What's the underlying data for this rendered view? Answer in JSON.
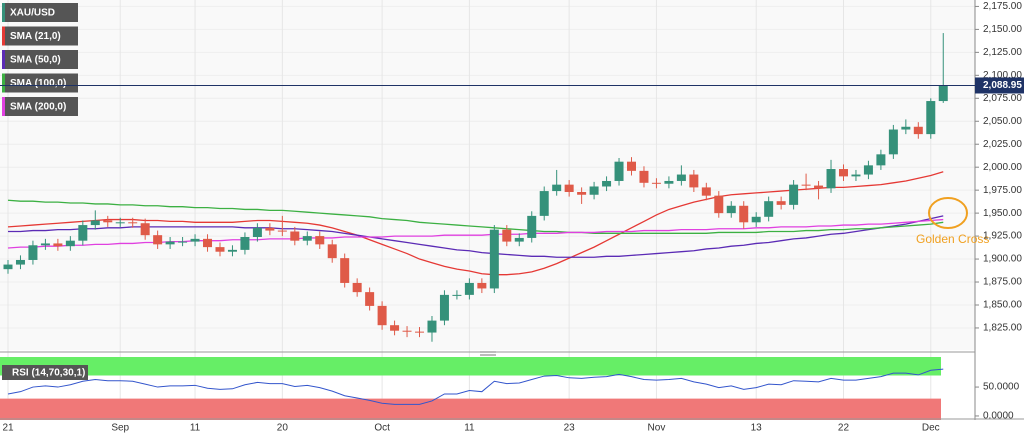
{
  "chart_data": [
    {
      "type": "candlestick",
      "name": "XAU/USD",
      "categories": [
        "21",
        null,
        null,
        null,
        null,
        null,
        null,
        null,
        null,
        "Sep",
        null,
        null,
        null,
        null,
        null,
        "11",
        null,
        null,
        null,
        null,
        null,
        null,
        "20",
        null,
        null,
        null,
        null,
        null,
        null,
        null,
        "Oct",
        null,
        null,
        null,
        null,
        null,
        null,
        "11",
        null,
        null,
        null,
        null,
        null,
        null,
        null,
        "23",
        null,
        null,
        null,
        null,
        null,
        null,
        "Nov",
        null,
        null,
        null,
        null,
        null,
        null,
        null,
        "13",
        null,
        null,
        null,
        null,
        null,
        null,
        "22",
        null,
        null,
        null,
        null,
        null,
        null,
        "Dec",
        null
      ],
      "open": [
        1889,
        1894,
        1899,
        1915,
        1917,
        1914,
        1920,
        1937,
        1942,
        1940,
        1940,
        1939,
        1926,
        1916,
        1919,
        1919,
        1922,
        1913,
        1908,
        1910,
        1924,
        1934,
        1931,
        1930,
        1920,
        1925,
        1916,
        1901,
        1874,
        1864,
        1849,
        1828,
        1822,
        1821,
        1820,
        1833,
        1861,
        1861,
        1874,
        1868,
        1932,
        1919,
        1923,
        1947,
        1974,
        1981,
        1973,
        1970,
        1979,
        1985,
        2006,
        1996,
        1983,
        1982,
        1985,
        1992,
        1978,
        1969,
        1950,
        1958,
        1940,
        1946,
        1963,
        1959,
        1981,
        1980,
        1977,
        1998,
        1990,
        1992,
        2002,
        2014,
        2041,
        2044,
        2036,
        2072
      ],
      "high": [
        1899,
        1904,
        1920,
        1922,
        1922,
        1925,
        1942,
        1953,
        1947,
        1945,
        1945,
        1944,
        1931,
        1924,
        1924,
        1927,
        1927,
        1918,
        1915,
        1929,
        1939,
        1939,
        1947,
        1935,
        1930,
        1930,
        1921,
        1906,
        1879,
        1869,
        1854,
        1833,
        1827,
        1826,
        1838,
        1866,
        1866,
        1879,
        1879,
        1937,
        1937,
        1928,
        1952,
        1979,
        1997,
        1986,
        1978,
        1984,
        1990,
        2010,
        2011,
        2001,
        1988,
        1990,
        2002,
        1997,
        1983,
        1974,
        1963,
        1963,
        1951,
        1968,
        1968,
        1986,
        1993,
        1985,
        2008,
        2003,
        1997,
        2007,
        2019,
        2046,
        2052,
        2049,
        2075,
        2146
      ],
      "low": [
        1884,
        1889,
        1894,
        1910,
        1909,
        1909,
        1915,
        1932,
        1935,
        1935,
        1934,
        1921,
        1911,
        1911,
        1914,
        1914,
        1908,
        1903,
        1903,
        1905,
        1919,
        1926,
        1925,
        1915,
        1915,
        1911,
        1896,
        1869,
        1859,
        1844,
        1823,
        1817,
        1815,
        1815,
        1810,
        1828,
        1856,
        1856,
        1863,
        1863,
        1914,
        1914,
        1918,
        1942,
        1969,
        1968,
        1960,
        1965,
        1974,
        1980,
        1991,
        1978,
        1977,
        1977,
        1980,
        1973,
        1964,
        1945,
        1945,
        1933,
        1935,
        1941,
        1954,
        1954,
        1975,
        1965,
        1972,
        1985,
        1985,
        1987,
        1997,
        2009,
        2036,
        2031,
        2031,
        2070
      ],
      "close": [
        1894,
        1899,
        1915,
        1917,
        1914,
        1920,
        1937,
        1942,
        1940,
        1940,
        1939,
        1926,
        1916,
        1919,
        1919,
        1922,
        1913,
        1908,
        1910,
        1924,
        1934,
        1931,
        1930,
        1920,
        1925,
        1916,
        1901,
        1874,
        1864,
        1849,
        1828,
        1822,
        1821,
        1820,
        1833,
        1861,
        1861,
        1874,
        1868,
        1932,
        1919,
        1923,
        1947,
        1974,
        1981,
        1973,
        1970,
        1979,
        1985,
        2006,
        1996,
        1983,
        1982,
        1985,
        1992,
        1978,
        1969,
        1950,
        1958,
        1940,
        1946,
        1963,
        1959,
        1981,
        1980,
        1977,
        1998,
        1990,
        1992,
        2002,
        2014,
        2041,
        2044,
        2036,
        2072,
        2089
      ],
      "up_color": "#35917a",
      "down_color": "#df5a48",
      "series": [
        {
          "name": "SMA (21,0)",
          "color": "#e53935",
          "values": [
            1935,
            1936,
            1937,
            1938,
            1939,
            1940,
            1941,
            1942,
            1943,
            1943,
            1943,
            1942,
            1942,
            1941,
            1941,
            1940,
            1940,
            1940,
            1940,
            1941,
            1942,
            1942,
            1941,
            1940,
            1939,
            1937,
            1934,
            1930,
            1926,
            1921,
            1916,
            1911,
            1906,
            1900,
            1896,
            1892,
            1889,
            1887,
            1884,
            1883,
            1883,
            1884,
            1886,
            1890,
            1895,
            1901,
            1907,
            1913,
            1920,
            1927,
            1934,
            1941,
            1948,
            1954,
            1958,
            1962,
            1965,
            1968,
            1970,
            1971,
            1972,
            1973,
            1974,
            1975,
            1976,
            1977,
            1978,
            1978,
            1979,
            1980,
            1981,
            1983,
            1985,
            1988,
            1991,
            1995
          ]
        },
        {
          "name": "SMA (50,0)",
          "color": "#5b2bb5",
          "values": [
            1930,
            1930,
            1931,
            1931,
            1932,
            1932,
            1933,
            1933,
            1934,
            1934,
            1935,
            1935,
            1935,
            1935,
            1935,
            1935,
            1935,
            1935,
            1935,
            1934,
            1934,
            1934,
            1933,
            1933,
            1932,
            1931,
            1930,
            1928,
            1926,
            1924,
            1922,
            1920,
            1918,
            1916,
            1914,
            1912,
            1910,
            1909,
            1907,
            1906,
            1905,
            1904,
            1903,
            1903,
            1902,
            1902,
            1902,
            1902,
            1903,
            1903,
            1904,
            1905,
            1906,
            1907,
            1908,
            1909,
            1911,
            1912,
            1914,
            1915,
            1917,
            1918,
            1920,
            1922,
            1923,
            1925,
            1927,
            1928,
            1930,
            1932,
            1934,
            1936,
            1938,
            1941,
            1944,
            1947
          ]
        },
        {
          "name": "SMA (100,0)",
          "color": "#3cb043",
          "values": [
            1964,
            1963,
            1963,
            1962,
            1962,
            1961,
            1961,
            1960,
            1960,
            1959,
            1959,
            1958,
            1958,
            1957,
            1957,
            1956,
            1956,
            1955,
            1955,
            1954,
            1954,
            1953,
            1953,
            1952,
            1951,
            1950,
            1949,
            1948,
            1947,
            1946,
            1944,
            1943,
            1942,
            1940,
            1939,
            1938,
            1937,
            1936,
            1935,
            1934,
            1933,
            1932,
            1931,
            1930,
            1930,
            1929,
            1929,
            1928,
            1928,
            1928,
            1928,
            1928,
            1928,
            1928,
            1928,
            1928,
            1928,
            1929,
            1929,
            1929,
            1929,
            1930,
            1930,
            1930,
            1931,
            1931,
            1932,
            1932,
            1933,
            1933,
            1934,
            1935,
            1936,
            1937,
            1938,
            1940
          ]
        },
        {
          "name": "SMA (200,0)",
          "color": "#e040e0",
          "values": [
            1912,
            1913,
            1913,
            1914,
            1914,
            1915,
            1915,
            1916,
            1916,
            1917,
            1917,
            1918,
            1918,
            1919,
            1919,
            1920,
            1920,
            1920,
            1921,
            1921,
            1921,
            1922,
            1922,
            1922,
            1923,
            1923,
            1923,
            1924,
            1924,
            1924,
            1924,
            1925,
            1925,
            1925,
            1925,
            1926,
            1926,
            1926,
            1926,
            1927,
            1927,
            1927,
            1928,
            1928,
            1928,
            1929,
            1929,
            1929,
            1930,
            1930,
            1930,
            1931,
            1931,
            1931,
            1932,
            1932,
            1932,
            1933,
            1933,
            1933,
            1934,
            1934,
            1935,
            1935,
            1935,
            1936,
            1936,
            1937,
            1937,
            1938,
            1938,
            1939,
            1940,
            1941,
            1942,
            1943
          ]
        }
      ],
      "ylim": [
        1801,
        2182
      ],
      "yticks": [
        {
          "value": 2175,
          "label": "2,175.00"
        },
        {
          "value": 2150,
          "label": "2,150.00"
        },
        {
          "value": 2125,
          "label": "2,125.00"
        },
        {
          "value": 2100,
          "label": "2,100.00"
        },
        {
          "value": 2075,
          "label": "2,075.00"
        },
        {
          "value": 2050,
          "label": "2,050.00"
        },
        {
          "value": 2025,
          "label": "2,025.00"
        },
        {
          "value": 2000,
          "label": "2,000.00"
        },
        {
          "value": 1975,
          "label": "1,975.00"
        },
        {
          "value": 1950,
          "label": "1,950.00"
        },
        {
          "value": 1925,
          "label": "1,925.00"
        },
        {
          "value": 1900,
          "label": "1,900.00"
        },
        {
          "value": 1875,
          "label": "1,875.00"
        },
        {
          "value": 1850,
          "label": "1,850.00"
        },
        {
          "value": 1825,
          "label": "1,825.00"
        }
      ],
      "last_price": {
        "value": 2088.95,
        "label": "2,088.95"
      },
      "annotation": "Golden Cross"
    },
    {
      "type": "line",
      "title": "RSI (14,70,30,1)",
      "color": "#3355cc",
      "values": [
        38,
        42,
        50,
        52,
        50,
        54,
        60,
        63,
        61,
        61,
        60,
        55,
        50,
        52,
        52,
        53,
        48,
        46,
        47,
        54,
        58,
        56,
        56,
        51,
        53,
        49,
        43,
        35,
        31,
        27,
        22,
        20,
        20,
        20,
        26,
        38,
        38,
        44,
        42,
        60,
        56,
        57,
        63,
        69,
        70,
        66,
        65,
        67,
        68,
        72,
        68,
        63,
        62,
        63,
        65,
        59,
        55,
        49,
        52,
        46,
        49,
        55,
        54,
        61,
        60,
        59,
        65,
        62,
        62,
        65,
        68,
        74,
        74,
        71,
        79,
        81
      ],
      "upper_band": 70,
      "lower_band": 30,
      "upper_color": "#66ee66",
      "lower_color": "#f07878",
      "ylim": [
        -7,
        102
      ],
      "yticks": [
        {
          "value": 50,
          "label": "50.0000"
        },
        {
          "value": 0,
          "label": "0.0000"
        }
      ]
    }
  ]
}
